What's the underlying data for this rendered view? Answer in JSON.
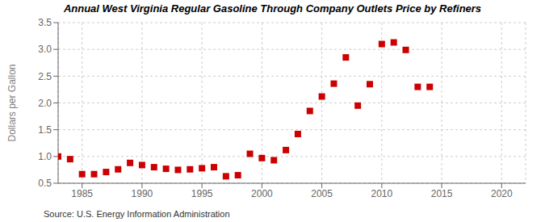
{
  "chart_data": {
    "type": "scatter",
    "title": "Annual West Virginia Regular Gasoline Through Company Outlets Price by Refiners",
    "y_label": "Dollars per Gallon",
    "annotation": "Source: U.S. Energy Information Administration",
    "color": "#cc0000",
    "marker": "square",
    "grid": true,
    "xlim": [
      1983,
      2022
    ],
    "ylim": [
      0.5,
      3.5
    ],
    "xticks": [
      1985,
      1990,
      1995,
      2000,
      2005,
      2010,
      2015,
      2020
    ],
    "yticks": [
      0.5,
      {
        "value": 1.0,
        "label": "1.0"
      },
      1.5,
      {
        "value": 2.0,
        "label": "2.0"
      },
      2.5,
      {
        "value": 3.0,
        "label": "3.0"
      },
      3.5
    ],
    "x": [
      1983,
      1984,
      1985,
      1986,
      1987,
      1988,
      1989,
      1990,
      1991,
      1992,
      1993,
      1994,
      1995,
      1996,
      1997,
      1998,
      1999,
      2000,
      2001,
      2002,
      2003,
      2004,
      2005,
      2006,
      2007,
      2008,
      2009,
      2010,
      2011,
      2012,
      2013,
      2014
    ],
    "values": [
      1.0,
      0.95,
      0.67,
      0.67,
      0.71,
      0.76,
      0.88,
      0.84,
      0.8,
      0.77,
      0.75,
      0.76,
      0.78,
      0.8,
      0.63,
      0.65,
      1.05,
      0.97,
      0.93,
      1.12,
      1.42,
      1.85,
      2.12,
      2.36,
      2.85,
      1.95,
      2.35,
      3.1,
      3.13,
      2.99,
      2.3,
      2.3
    ]
  }
}
